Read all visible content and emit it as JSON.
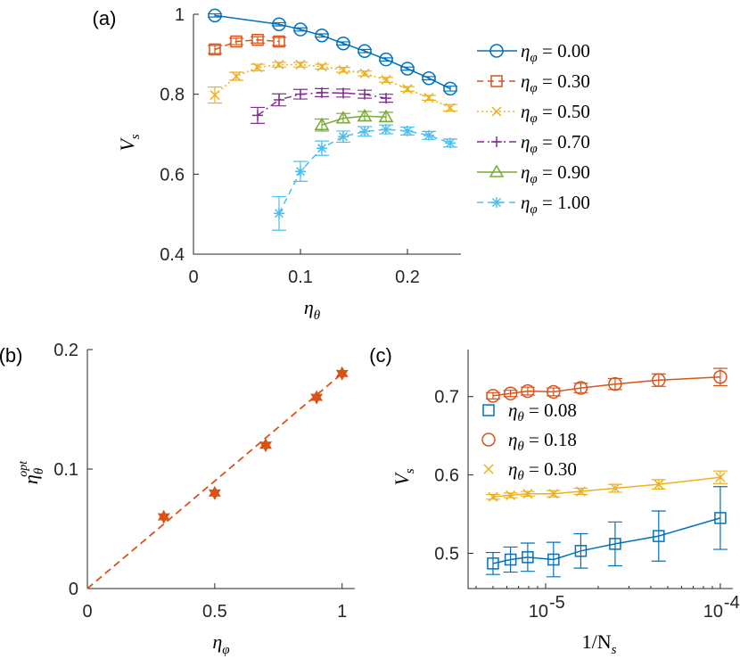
{
  "colors": {
    "c1": "#0072BD",
    "c2": "#D95319",
    "c3": "#EDB120",
    "c4": "#7E2F8E",
    "c5": "#77AC30",
    "c6": "#4DBEEE"
  },
  "chart_data": [
    {
      "panel": "(a)",
      "type": "line",
      "xlabel": "η_θ",
      "ylabel": "V_s",
      "xlim": [
        0,
        0.25
      ],
      "ylim": [
        0.4,
        1.0
      ],
      "xticks": [
        0,
        0.1,
        0.2
      ],
      "xtick_labels": [
        "0",
        "0.1",
        "0.2"
      ],
      "yticks": [
        0.4,
        0.6,
        0.8,
        1.0
      ],
      "ytick_labels": [
        "0.4",
        "0.6",
        "0.8",
        "1"
      ],
      "legend_location": "outside-right",
      "series": [
        {
          "name": "η_φ = 0.00",
          "legend_math": "η",
          "legend_sub": "φ",
          "legend_value": " = 0.00",
          "color": "c1",
          "marker": "circle",
          "linestyle": "solid",
          "x": [
            0.02,
            0.08,
            0.1,
            0.12,
            0.14,
            0.16,
            0.18,
            0.2,
            0.22,
            0.24
          ],
          "y": [
            0.997,
            0.975,
            0.962,
            0.947,
            0.927,
            0.908,
            0.887,
            0.864,
            0.84,
            0.814
          ],
          "err": [
            0.004,
            0.004,
            0.004,
            0.004,
            0.004,
            0.004,
            0.004,
            0.004,
            0.004,
            0.006
          ]
        },
        {
          "name": "η_φ = 0.30",
          "legend_math": "η",
          "legend_sub": "φ",
          "legend_value": " = 0.30",
          "color": "c2",
          "marker": "square",
          "linestyle": "dashed",
          "x": [
            0.02,
            0.04,
            0.06,
            0.08
          ],
          "y": [
            0.912,
            0.932,
            0.936,
            0.932
          ],
          "err": [
            0.01,
            0.008,
            0.008,
            0.01
          ]
        },
        {
          "name": "η_φ = 0.50",
          "legend_math": "η",
          "legend_sub": "φ",
          "legend_value": " = 0.50",
          "color": "c3",
          "marker": "x",
          "linestyle": "dotted",
          "x": [
            0.02,
            0.04,
            0.06,
            0.08,
            0.1,
            0.12,
            0.14,
            0.16,
            0.18,
            0.2,
            0.22,
            0.24
          ],
          "y": [
            0.798,
            0.845,
            0.867,
            0.874,
            0.874,
            0.869,
            0.861,
            0.852,
            0.836,
            0.813,
            0.791,
            0.766
          ],
          "err": [
            0.02,
            0.01,
            0.008,
            0.006,
            0.006,
            0.006,
            0.006,
            0.006,
            0.006,
            0.006,
            0.006,
            0.008
          ]
        },
        {
          "name": "η_φ = 0.70",
          "legend_math": "η",
          "legend_sub": "φ",
          "legend_value": " = 0.70",
          "color": "c4",
          "marker": "plus",
          "linestyle": "dashdot",
          "x": [
            0.06,
            0.08,
            0.1,
            0.12,
            0.14,
            0.16,
            0.18
          ],
          "y": [
            0.747,
            0.786,
            0.8,
            0.804,
            0.803,
            0.8,
            0.79
          ],
          "err": [
            0.02,
            0.015,
            0.012,
            0.01,
            0.01,
            0.01,
            0.01
          ]
        },
        {
          "name": "η_φ = 0.90",
          "legend_math": "η",
          "legend_sub": "φ",
          "legend_value": " = 0.90",
          "color": "c5",
          "marker": "triangle",
          "linestyle": "solid",
          "x": [
            0.12,
            0.14,
            0.16,
            0.18
          ],
          "y": [
            0.723,
            0.74,
            0.745,
            0.743
          ],
          "err": [
            0.015,
            0.012,
            0.012,
            0.012
          ]
        },
        {
          "name": "η_φ = 1.00",
          "legend_math": "η",
          "legend_sub": "φ",
          "legend_value": " = 1.00",
          "color": "c6",
          "marker": "asterisk",
          "linestyle": "dashed",
          "x": [
            0.08,
            0.1,
            0.12,
            0.14,
            0.16,
            0.18,
            0.2,
            0.22,
            0.24
          ],
          "y": [
            0.502,
            0.607,
            0.665,
            0.694,
            0.707,
            0.712,
            0.708,
            0.697,
            0.678
          ],
          "err": [
            0.042,
            0.025,
            0.018,
            0.014,
            0.012,
            0.011,
            0.01,
            0.01,
            0.01
          ]
        }
      ]
    },
    {
      "panel": "(b)",
      "type": "scatter",
      "xlabel": "η_φ",
      "ylabel": "η_θ^opt",
      "xlim": [
        0,
        1.05
      ],
      "ylim": [
        0,
        0.2
      ],
      "xticks": [
        0,
        0.5,
        1
      ],
      "xtick_labels": [
        "0",
        "0.5",
        "1"
      ],
      "yticks": [
        0,
        0.1,
        0.2
      ],
      "ytick_labels": [
        "0",
        "0.1",
        "0.2"
      ],
      "points": {
        "x": [
          0.3,
          0.5,
          0.7,
          0.9,
          1.0
        ],
        "y": [
          0.06,
          0.08,
          0.12,
          0.16,
          0.18
        ],
        "color": "c2",
        "marker": "hexagram"
      },
      "fit_line": {
        "x": [
          0,
          1.0
        ],
        "y": [
          0,
          0.18
        ],
        "color": "c2",
        "linestyle": "dashed"
      }
    },
    {
      "panel": "(c)",
      "type": "line",
      "xscale": "log",
      "xlabel": "1/N_s",
      "ylabel": "V_s",
      "xlim": [
        3.6e-06,
        0.000118
      ],
      "ylim": [
        0.455,
        0.76
      ],
      "xticks": [
        1e-05,
        0.0001
      ],
      "xtick_labels": [
        "10",
        "10"
      ],
      "xtick_exponents": [
        "-5",
        "-4"
      ],
      "yticks": [
        0.5,
        0.6,
        0.7
      ],
      "ytick_labels": [
        "0.5",
        "0.6",
        "0.7"
      ],
      "legend_location": "inside-left",
      "series": [
        {
          "name": "η_θ = 0.08",
          "legend_math": "η",
          "legend_sub": "θ",
          "legend_value": " = 0.08",
          "color": "c1",
          "marker": "square",
          "x": [
            5e-06,
            6.3e-06,
            7.9e-06,
            1.11e-05,
            1.59e-05,
            2.5e-05,
            4.44e-05,
            0.0001
          ],
          "y": [
            0.487,
            0.492,
            0.495,
            0.492,
            0.503,
            0.512,
            0.522,
            0.545
          ],
          "err": [
            0.014,
            0.016,
            0.018,
            0.022,
            0.022,
            0.028,
            0.032,
            0.04
          ]
        },
        {
          "name": "η_θ = 0.18",
          "legend_math": "η",
          "legend_sub": "θ",
          "legend_value": " = 0.18",
          "color": "c2",
          "marker": "circle",
          "x": [
            5e-06,
            6.3e-06,
            7.9e-06,
            1.11e-05,
            1.59e-05,
            2.5e-05,
            4.44e-05,
            0.0001
          ],
          "y": [
            0.701,
            0.704,
            0.707,
            0.706,
            0.711,
            0.716,
            0.721,
            0.725
          ],
          "err": [
            0.004,
            0.004,
            0.005,
            0.005,
            0.006,
            0.007,
            0.008,
            0.011
          ]
        },
        {
          "name": "η_θ = 0.30",
          "legend_math": "η",
          "legend_sub": "θ",
          "legend_value": " = 0.30",
          "color": "c3",
          "marker": "x",
          "x": [
            5e-06,
            6.3e-06,
            7.9e-06,
            1.11e-05,
            1.59e-05,
            2.5e-05,
            4.44e-05,
            0.0001
          ],
          "y": [
            0.572,
            0.574,
            0.576,
            0.576,
            0.579,
            0.583,
            0.588,
            0.597
          ],
          "err": [
            0.003,
            0.003,
            0.003,
            0.004,
            0.004,
            0.005,
            0.006,
            0.008
          ]
        }
      ]
    }
  ]
}
